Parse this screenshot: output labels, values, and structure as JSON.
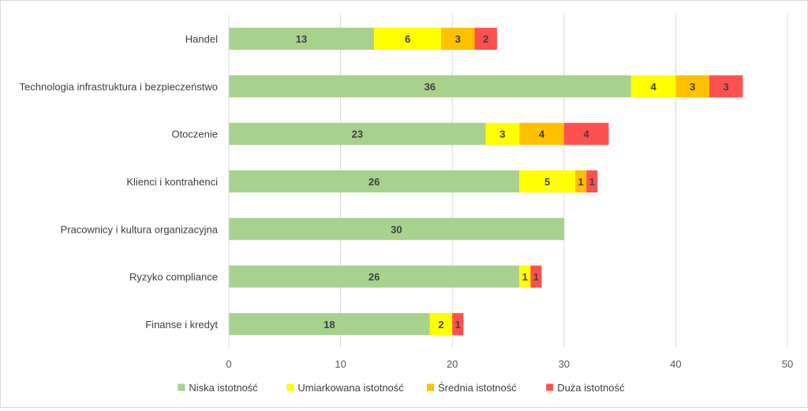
{
  "chart_data": {
    "type": "bar",
    "orientation": "horizontal",
    "stacked": true,
    "categories": [
      "Handel",
      "Technologia infrastruktura i bezpieczeństwo",
      "Otoczenie",
      "Klienci i kontrahenci",
      "Pracownicy i kultura organizacyjna",
      "Ryzyko compliance",
      "Finanse i kredyt"
    ],
    "series": [
      {
        "name": "Niska istotność",
        "color": "#a9d18e",
        "values": [
          13,
          36,
          23,
          26,
          30,
          26,
          18
        ]
      },
      {
        "name": "Umiarkowana istotność",
        "color": "#ffff00",
        "values": [
          6,
          4,
          3,
          5,
          0,
          1,
          2
        ]
      },
      {
        "name": "Średnia istotność",
        "color": "#ffc000",
        "values": [
          3,
          3,
          4,
          1,
          0,
          0,
          0
        ]
      },
      {
        "name": "Duża istotność",
        "color": "#ff5050",
        "values": [
          2,
          3,
          4,
          1,
          0,
          1,
          1
        ]
      }
    ],
    "xlim": [
      0,
      50
    ],
    "xticks": [
      0,
      10,
      20,
      30,
      40,
      50
    ],
    "grid": true,
    "legend": "bottom",
    "data_labels": true
  }
}
